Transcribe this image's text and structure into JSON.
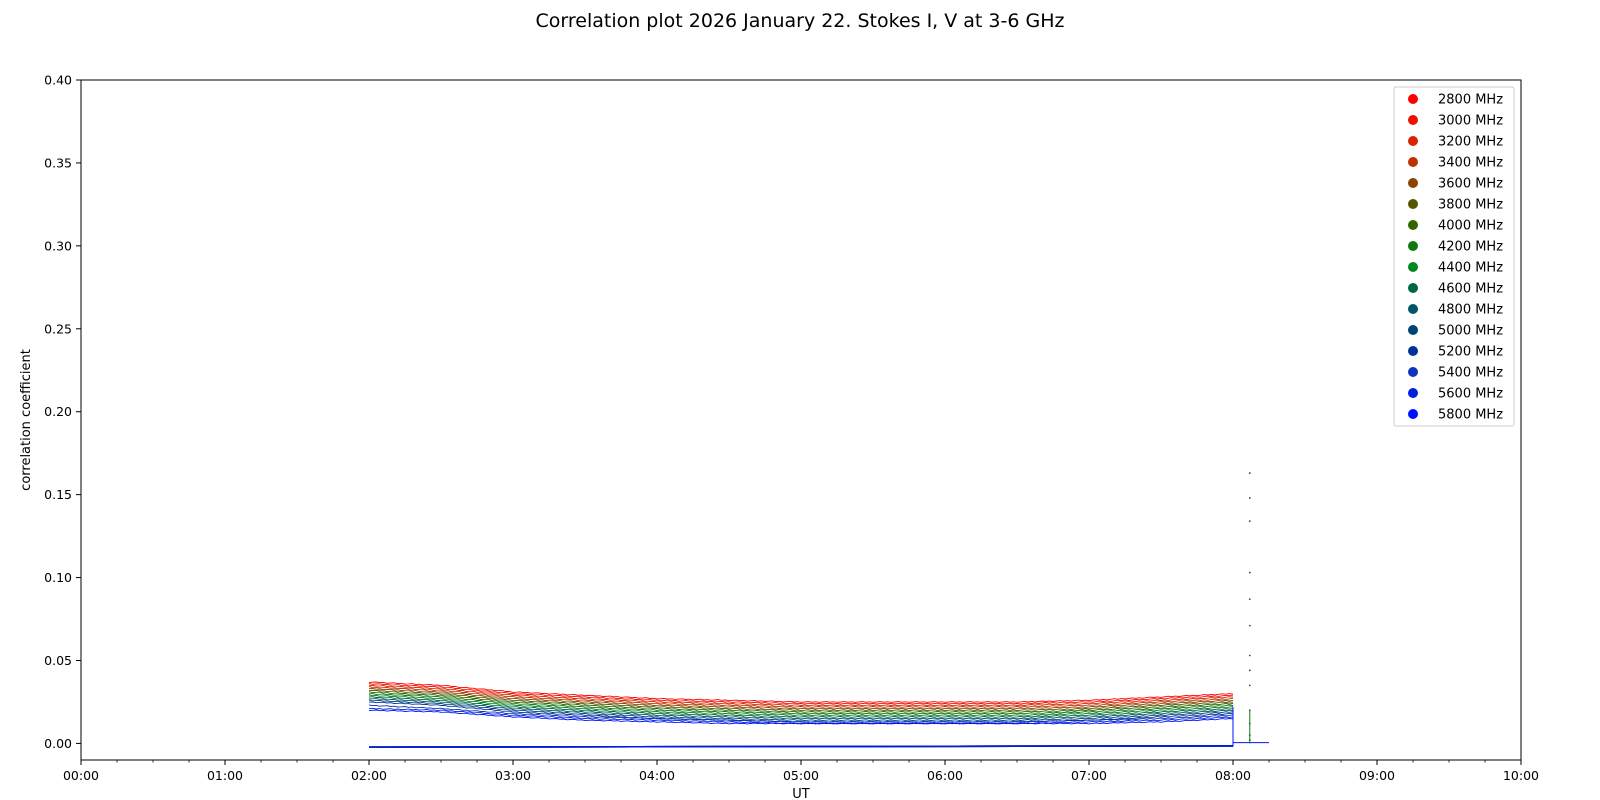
{
  "chart_data": {
    "type": "scatter",
    "title": "Correlation plot 2026 January 22. Stokes I, V at 3-6 GHz",
    "xlabel": "UT",
    "ylabel": "correlation coefficient",
    "xlim": [
      "00:00",
      "10:00"
    ],
    "ylim": [
      -0.01,
      0.4
    ],
    "x_ticks": [
      "00:00",
      "01:00",
      "02:00",
      "03:00",
      "04:00",
      "05:00",
      "06:00",
      "07:00",
      "08:00",
      "09:00",
      "10:00"
    ],
    "y_ticks": [
      "0.00",
      "0.05",
      "0.10",
      "0.15",
      "0.20",
      "0.25",
      "0.30",
      "0.35",
      "0.40"
    ],
    "grid": false,
    "legend_position": "top-right",
    "x": [
      "02:00",
      "02:30",
      "03:00",
      "03:30",
      "04:00",
      "04:30",
      "05:00",
      "05:30",
      "06:00",
      "06:30",
      "07:00",
      "07:30",
      "08:00"
    ],
    "series": [
      {
        "name": "2800 MHz",
        "color": "#ff0000",
        "stokes_i": [
          0.037,
          0.035,
          0.031,
          0.029,
          0.027,
          0.026,
          0.025,
          0.025,
          0.025,
          0.025,
          0.026,
          0.028,
          0.03
        ],
        "stokes_v": -0.002
      },
      {
        "name": "3000 MHz",
        "color": "#ee1100",
        "stokes_i": [
          0.036,
          0.034,
          0.03,
          0.028,
          0.026,
          0.025,
          0.024,
          0.024,
          0.024,
          0.024,
          0.025,
          0.027,
          0.029
        ],
        "stokes_v": -0.002
      },
      {
        "name": "3200 MHz",
        "color": "#dd2200",
        "stokes_i": [
          0.035,
          0.033,
          0.029,
          0.027,
          0.025,
          0.024,
          0.023,
          0.023,
          0.023,
          0.023,
          0.024,
          0.026,
          0.028
        ],
        "stokes_v": -0.002
      },
      {
        "name": "3400 MHz",
        "color": "#bb3300",
        "stokes_i": [
          0.034,
          0.032,
          0.028,
          0.026,
          0.024,
          0.023,
          0.022,
          0.022,
          0.022,
          0.022,
          0.023,
          0.025,
          0.027
        ],
        "stokes_v": -0.002
      },
      {
        "name": "3600 MHz",
        "color": "#884400",
        "stokes_i": [
          0.033,
          0.031,
          0.027,
          0.025,
          0.023,
          0.022,
          0.021,
          0.021,
          0.021,
          0.021,
          0.022,
          0.024,
          0.026
        ],
        "stokes_v": -0.002
      },
      {
        "name": "3800 MHz",
        "color": "#555500",
        "stokes_i": [
          0.032,
          0.03,
          0.026,
          0.024,
          0.022,
          0.021,
          0.02,
          0.02,
          0.02,
          0.02,
          0.021,
          0.023,
          0.025
        ],
        "stokes_v": -0.002
      },
      {
        "name": "4000 MHz",
        "color": "#336600",
        "stokes_i": [
          0.031,
          0.029,
          0.025,
          0.023,
          0.021,
          0.02,
          0.019,
          0.019,
          0.019,
          0.019,
          0.02,
          0.022,
          0.024
        ],
        "stokes_v": -0.002
      },
      {
        "name": "4200 MHz",
        "color": "#117711",
        "stokes_i": [
          0.03,
          0.028,
          0.024,
          0.022,
          0.02,
          0.019,
          0.018,
          0.018,
          0.018,
          0.018,
          0.019,
          0.021,
          0.023
        ],
        "stokes_v": -0.002
      },
      {
        "name": "4400 MHz",
        "color": "#008822",
        "stokes_i": [
          0.029,
          0.027,
          0.023,
          0.021,
          0.019,
          0.018,
          0.017,
          0.017,
          0.017,
          0.017,
          0.018,
          0.02,
          0.022
        ],
        "stokes_v": -0.002
      },
      {
        "name": "4600 MHz",
        "color": "#006644",
        "stokes_i": [
          0.028,
          0.026,
          0.022,
          0.02,
          0.018,
          0.017,
          0.016,
          0.016,
          0.016,
          0.016,
          0.017,
          0.019,
          0.021
        ],
        "stokes_v": -0.002
      },
      {
        "name": "4800 MHz",
        "color": "#005566",
        "stokes_i": [
          0.027,
          0.025,
          0.021,
          0.019,
          0.017,
          0.016,
          0.015,
          0.015,
          0.015,
          0.015,
          0.016,
          0.018,
          0.02
        ],
        "stokes_v": -0.002
      },
      {
        "name": "5000 MHz",
        "color": "#004477",
        "stokes_i": [
          0.026,
          0.024,
          0.02,
          0.018,
          0.016,
          0.015,
          0.014,
          0.014,
          0.014,
          0.014,
          0.015,
          0.017,
          0.019
        ],
        "stokes_v": -0.002
      },
      {
        "name": "5200 MHz",
        "color": "#003399",
        "stokes_i": [
          0.025,
          0.023,
          0.019,
          0.017,
          0.015,
          0.014,
          0.013,
          0.013,
          0.013,
          0.013,
          0.014,
          0.016,
          0.018
        ],
        "stokes_v": -0.002
      },
      {
        "name": "5400 MHz",
        "color": "#1133bb",
        "stokes_i": [
          0.023,
          0.021,
          0.018,
          0.016,
          0.015,
          0.014,
          0.013,
          0.013,
          0.013,
          0.013,
          0.014,
          0.015,
          0.017
        ],
        "stokes_v": -0.002
      },
      {
        "name": "5600 MHz",
        "color": "#0022dd",
        "stokes_i": [
          0.021,
          0.02,
          0.017,
          0.015,
          0.014,
          0.013,
          0.012,
          0.012,
          0.012,
          0.012,
          0.013,
          0.014,
          0.016
        ],
        "stokes_v": -0.002
      },
      {
        "name": "5800 MHz",
        "color": "#0011ff",
        "stokes_i": [
          0.02,
          0.019,
          0.016,
          0.014,
          0.013,
          0.012,
          0.012,
          0.012,
          0.012,
          0.012,
          0.012,
          0.013,
          0.015
        ],
        "stokes_v": -0.002
      }
    ],
    "spike": {
      "time": "08:07",
      "values": [
        0.163,
        0.148,
        0.134,
        0.103,
        0.087,
        0.071,
        0.053,
        0.044,
        0.035,
        0.02,
        0.012,
        0.005,
        0.002
      ]
    }
  }
}
